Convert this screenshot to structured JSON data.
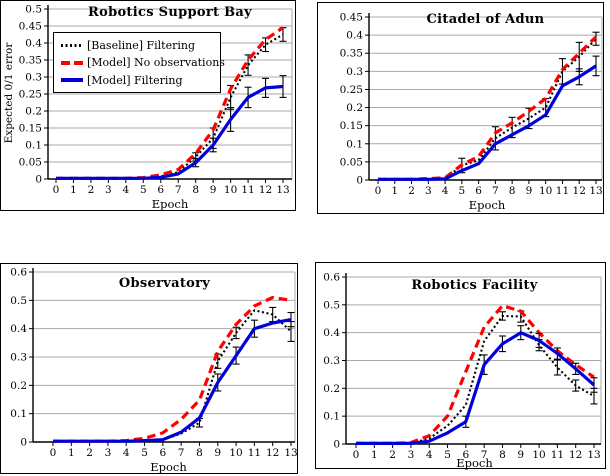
{
  "figure": {
    "colors": {
      "baseline": "#000000",
      "model_no_observations": "#ff0000",
      "model_filtering": "#0000d8",
      "grid": "#a9a9a9",
      "error_bar": "#000000"
    },
    "legend": {
      "position": "top-left-of-first-panel"
    }
  },
  "chart_data": [
    {
      "type": "line",
      "title": "Robotics Support Bay",
      "xlabel": "Epoch",
      "ylabel": "Expected 0/1 error",
      "x": [
        0,
        1,
        2,
        3,
        4,
        5,
        6,
        7,
        8,
        9,
        10,
        11,
        12,
        13
      ],
      "ylim": [
        0,
        0.5
      ],
      "ytick": 0.05,
      "grid": true,
      "legend": true,
      "series": [
        {
          "name": "[Baseline] Filtering",
          "style": "dotted",
          "color": "#000000",
          "values": [
            0.002,
            0.002,
            0.002,
            0.002,
            0.002,
            0.002,
            0.008,
            0.02,
            0.065,
            0.12,
            0.24,
            0.335,
            0.395,
            0.425
          ],
          "errors": [
            0,
            0,
            0,
            0,
            0,
            0,
            0,
            0,
            0.012,
            0.03,
            0.035,
            0.03,
            0.02,
            0.02
          ]
        },
        {
          "name": "[Model] No observations",
          "style": "dashed",
          "color": "#ff0000",
          "values": [
            0.002,
            0.002,
            0.002,
            0.002,
            0.002,
            0.004,
            0.012,
            0.028,
            0.075,
            0.145,
            0.265,
            0.35,
            0.41,
            0.445
          ],
          "errors": [
            0,
            0,
            0,
            0,
            0,
            0,
            0,
            0,
            0,
            0,
            0,
            0,
            0,
            0
          ]
        },
        {
          "name": "[Model] Filtering",
          "style": "solid",
          "color": "#0000d8",
          "values": [
            0.002,
            0.002,
            0.002,
            0.002,
            0.002,
            0.002,
            0.005,
            0.015,
            0.048,
            0.1,
            0.175,
            0.24,
            0.268,
            0.272
          ],
          "errors": [
            0,
            0,
            0,
            0,
            0,
            0,
            0,
            0,
            0.012,
            0.02,
            0.035,
            0.03,
            0.028,
            0.032
          ]
        }
      ]
    },
    {
      "type": "line",
      "title": "Citadel of Adun",
      "xlabel": "Epoch",
      "ylabel": "",
      "x": [
        0,
        1,
        2,
        3,
        4,
        5,
        6,
        7,
        8,
        9,
        10,
        11,
        12,
        13
      ],
      "ylim": [
        0,
        0.45
      ],
      "ytick": 0.05,
      "grid": true,
      "legend": false,
      "series": [
        {
          "name": "[Baseline] Filtering",
          "style": "dotted",
          "color": "#000000",
          "values": [
            0.002,
            0.002,
            0.002,
            0.002,
            0.004,
            0.04,
            0.055,
            0.115,
            0.145,
            0.17,
            0.2,
            0.3,
            0.34,
            0.39
          ],
          "errors": [
            0,
            0,
            0,
            0,
            0,
            0.02,
            0,
            0.032,
            0.028,
            0.028,
            0.025,
            0.035,
            0.04,
            0.018
          ]
        },
        {
          "name": "[Model] No observations",
          "style": "dashed",
          "color": "#ff0000",
          "values": [
            0.002,
            0.002,
            0.002,
            0.004,
            0.006,
            0.042,
            0.065,
            0.13,
            0.158,
            0.19,
            0.225,
            0.305,
            0.35,
            0.395
          ],
          "errors": [
            0,
            0,
            0,
            0,
            0,
            0,
            0,
            0,
            0,
            0,
            0,
            0,
            0,
            0
          ]
        },
        {
          "name": "[Model] Filtering",
          "style": "solid",
          "color": "#0000d8",
          "values": [
            0.002,
            0.002,
            0.002,
            0.002,
            0.003,
            0.026,
            0.045,
            0.1,
            0.125,
            0.15,
            0.18,
            0.26,
            0.285,
            0.315
          ],
          "errors": [
            0,
            0,
            0,
            0,
            0,
            0,
            0,
            0,
            0,
            0,
            0,
            0,
            0.022,
            0.027
          ]
        }
      ]
    },
    {
      "type": "line",
      "title": "Observatory",
      "xlabel": "Epoch",
      "ylabel": "",
      "x": [
        0,
        1,
        2,
        3,
        4,
        5,
        6,
        7,
        8,
        9,
        10,
        11,
        12,
        13
      ],
      "ylim": [
        0,
        0.6
      ],
      "ytick": 0.1,
      "grid": true,
      "legend": false,
      "series": [
        {
          "name": "[Baseline] Filtering",
          "style": "dotted",
          "color": "#000000",
          "values": [
            0.003,
            0.003,
            0.003,
            0.003,
            0.003,
            0.004,
            0.008,
            0.03,
            0.068,
            0.285,
            0.385,
            0.465,
            0.45,
            0.39
          ],
          "errors": [
            0,
            0,
            0,
            0,
            0,
            0,
            0,
            0,
            0.015,
            0.025,
            0.02,
            0,
            0.025,
            0.035
          ]
        },
        {
          "name": "[Model] No observations",
          "style": "dashed",
          "color": "#ff0000",
          "values": [
            0.003,
            0.003,
            0.003,
            0.003,
            0.005,
            0.013,
            0.032,
            0.08,
            0.148,
            0.32,
            0.415,
            0.48,
            0.51,
            0.5
          ],
          "errors": [
            0,
            0,
            0,
            0,
            0,
            0,
            0,
            0,
            0,
            0,
            0,
            0,
            0,
            0
          ]
        },
        {
          "name": "[Model] Filtering",
          "style": "solid",
          "color": "#0000d8",
          "values": [
            0.003,
            0.003,
            0.003,
            0.003,
            0.003,
            0.005,
            0.008,
            0.035,
            0.085,
            0.21,
            0.305,
            0.4,
            0.42,
            0.432
          ],
          "errors": [
            0,
            0,
            0,
            0,
            0,
            0,
            0,
            0,
            0,
            0.03,
            0.03,
            0.03,
            0,
            0.025
          ]
        }
      ]
    },
    {
      "type": "line",
      "title": "Robotics Facility",
      "xlabel": "Epoch",
      "ylabel": "",
      "x": [
        0,
        1,
        2,
        3,
        4,
        5,
        6,
        7,
        8,
        9,
        10,
        11,
        12,
        13
      ],
      "ylim": [
        0,
        0.6
      ],
      "ytick": 0.1,
      "grid": true,
      "legend": false,
      "series": [
        {
          "name": "[Baseline] Filtering",
          "style": "dotted",
          "color": "#000000",
          "values": [
            0.002,
            0.002,
            0.002,
            0.002,
            0.02,
            0.065,
            0.14,
            0.37,
            0.46,
            0.458,
            0.355,
            0.275,
            0.21,
            0.172
          ],
          "errors": [
            0,
            0,
            0,
            0,
            0,
            0,
            0,
            0,
            0.015,
            0.02,
            0.02,
            0.027,
            0.02,
            0.028
          ]
        },
        {
          "name": "[Model] No observations",
          "style": "dashed",
          "color": "#ff0000",
          "values": [
            0.002,
            0.002,
            0.002,
            0.005,
            0.03,
            0.1,
            0.26,
            0.42,
            0.497,
            0.477,
            0.4,
            0.335,
            0.285,
            0.24
          ],
          "errors": [
            0,
            0,
            0,
            0,
            0,
            0,
            0,
            0,
            0,
            0,
            0,
            0,
            0,
            0
          ]
        },
        {
          "name": "[Model] Filtering",
          "style": "solid",
          "color": "#0000d8",
          "values": [
            0.002,
            0.002,
            0.002,
            0.002,
            0.01,
            0.04,
            0.08,
            0.285,
            0.36,
            0.4,
            0.372,
            0.325,
            0.27,
            0.212
          ],
          "errors": [
            0,
            0,
            0,
            0,
            0,
            0,
            0.02,
            0.035,
            0.028,
            0.025,
            0.025,
            0.02,
            0.02,
            0.026
          ]
        }
      ]
    }
  ]
}
